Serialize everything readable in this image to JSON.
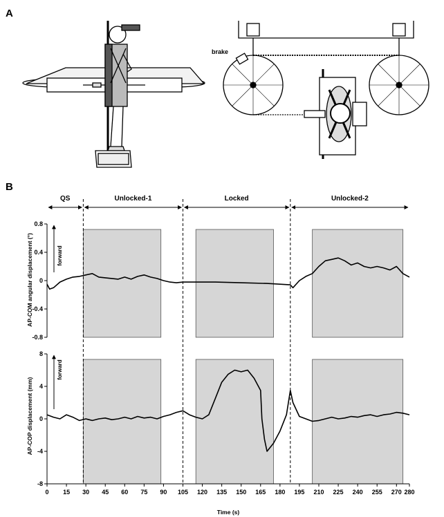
{
  "panels": {
    "a": {
      "label": "A",
      "brake_label": "brake"
    },
    "b": {
      "label": "B"
    }
  },
  "chart_data": {
    "type": "line",
    "xlabel": "Time (s)",
    "xlim": [
      0,
      280
    ],
    "xticks": [
      0,
      15,
      30,
      45,
      60,
      75,
      90,
      105,
      120,
      135,
      150,
      165,
      180,
      195,
      210,
      225,
      240,
      255,
      270,
      280
    ],
    "phase_boundaries": [
      28,
      105,
      188
    ],
    "phases": [
      {
        "label": "QS",
        "start": 0,
        "end": 28
      },
      {
        "label": "Unlocked-1",
        "start": 28,
        "end": 105
      },
      {
        "label": "Locked",
        "start": 105,
        "end": 188
      },
      {
        "label": "Unlocked-2",
        "start": 188,
        "end": 280
      }
    ],
    "shaded_windows": [
      [
        28,
        88
      ],
      [
        115,
        175
      ],
      [
        205,
        275
      ]
    ],
    "shading_color": "#d6d6d6",
    "subplots": [
      {
        "ylabel": "AP-COM angular displacement (°)",
        "direction_label": "forward",
        "ylim": [
          -0.8,
          0.8
        ],
        "yticks": [
          -0.8,
          -0.4,
          0,
          0.4,
          0.8
        ],
        "series": [
          {
            "x": [
              0,
              2,
              5,
              10,
              15,
              20,
              25,
              30,
              35,
              40,
              45,
              50,
              55,
              60,
              65,
              70,
              75,
              80,
              85,
              90,
              95,
              100,
              105,
              115,
              130,
              150,
              170,
              188,
              190,
              195,
              200,
              205,
              210,
              215,
              220,
              225,
              230,
              235,
              240,
              245,
              250,
              255,
              260,
              265,
              270,
              275,
              280
            ],
            "y": [
              -0.05,
              -0.12,
              -0.1,
              -0.02,
              0.02,
              0.05,
              0.06,
              0.08,
              0.1,
              0.05,
              0.04,
              0.03,
              0.02,
              0.05,
              0.02,
              0.06,
              0.08,
              0.05,
              0.03,
              0.0,
              -0.02,
              -0.03,
              -0.02,
              -0.02,
              -0.02,
              -0.03,
              -0.04,
              -0.06,
              -0.1,
              0.0,
              0.06,
              0.1,
              0.2,
              0.28,
              0.3,
              0.32,
              0.28,
              0.22,
              0.25,
              0.2,
              0.18,
              0.2,
              0.18,
              0.15,
              0.2,
              0.1,
              0.05
            ]
          }
        ]
      },
      {
        "ylabel": "AP-COP displacement (mm)",
        "direction_label": "forward",
        "ylim": [
          -8,
          8
        ],
        "yticks": [
          -8,
          -4,
          0,
          4,
          8
        ],
        "series": [
          {
            "x": [
              0,
              5,
              10,
              15,
              20,
              25,
              30,
              35,
              40,
              45,
              50,
              55,
              60,
              65,
              70,
              75,
              80,
              85,
              90,
              95,
              100,
              105,
              110,
              115,
              120,
              125,
              130,
              135,
              140,
              145,
              150,
              155,
              160,
              165,
              166,
              168,
              170,
              175,
              180,
              185,
              188,
              190,
              195,
              200,
              205,
              210,
              215,
              220,
              225,
              230,
              235,
              240,
              245,
              250,
              255,
              260,
              265,
              270,
              275,
              280
            ],
            "y": [
              0.5,
              0.2,
              0.0,
              0.5,
              0.2,
              -0.2,
              0.0,
              -0.2,
              0.0,
              0.1,
              -0.1,
              0.0,
              0.2,
              0.0,
              0.3,
              0.1,
              0.2,
              0.0,
              0.3,
              0.5,
              0.8,
              1.0,
              0.5,
              0.2,
              0.0,
              0.5,
              2.5,
              4.5,
              5.5,
              6.0,
              5.8,
              6.0,
              5.0,
              3.5,
              0.0,
              -2.5,
              -4.0,
              -3.0,
              -1.5,
              0.5,
              3.5,
              2.0,
              0.3,
              0.0,
              -0.3,
              -0.2,
              0.0,
              0.2,
              0.0,
              0.1,
              0.3,
              0.2,
              0.4,
              0.5,
              0.3,
              0.5,
              0.6,
              0.8,
              0.7,
              0.5
            ]
          }
        ]
      }
    ]
  }
}
